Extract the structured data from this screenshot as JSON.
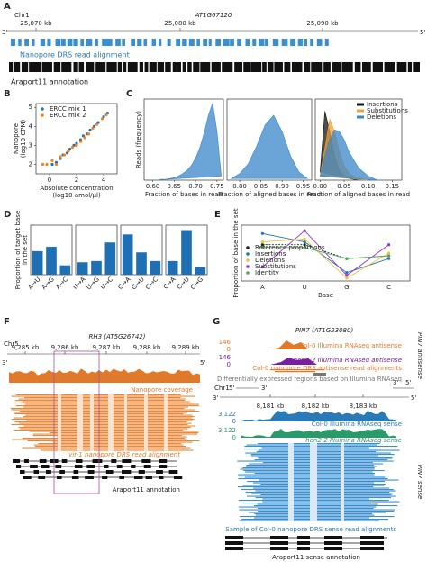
{
  "panels": {
    "A": {
      "label": "A",
      "chrom": "Chr1",
      "gene": "AT1G67120",
      "ticks": [
        "25,070 kb",
        "25,080 kb",
        "25,090 kb"
      ],
      "left_end": "3'",
      "right_end": "5'",
      "reads": "Nanopore DRS read alignment",
      "annotation": "Araport11 annotation"
    },
    "B": {
      "label": "B"
    },
    "C": {
      "label": "C"
    },
    "D": {
      "label": "D"
    },
    "E": {
      "label": "E"
    },
    "F": {
      "label": "F",
      "chrom": "Chr5",
      "gene": "RH3 (AT5G26742)",
      "ticks": [
        "9,285 kb",
        "9,286 kb",
        "9,287 kb",
        "9,288 kb",
        "9,289 kb"
      ],
      "left_end": "3'",
      "right_end": "5'",
      "coverage": "Nanopore coverage",
      "reads": "vir-1 nanopore DRS read alignment",
      "annotation": "Araport11 annotation"
    },
    "G": {
      "label": "G",
      "gene": "PIN7 (AT1G23080)",
      "antisense_scales": [
        "146",
        "0",
        "146",
        "0"
      ],
      "antisense_tracks": [
        "Col-0 Illumina RNAseq antisense",
        "hen2-2 Illumina RNAseq antisense",
        "Col-0 nanopore DRS antisense read alignments"
      ],
      "de_regions": "Differentially expressed regions based on Illumina RNAseq",
      "chrom": "Chr1",
      "left_strand": [
        "5'",
        "3'"
      ],
      "right_strand": [
        "3'",
        "5'"
      ],
      "left_end": "3'",
      "right_end": "5'",
      "ticks": [
        "8,181 kb",
        "8,182 kb",
        "8,183 kb"
      ],
      "sense_scales": [
        "3,122",
        "0",
        "3,122",
        "0"
      ],
      "sense_tracks": [
        "Col-0 Illumina RNAseq sense",
        "hen2-2 Illumina RNAseq sense"
      ],
      "sense_reads": "Sample of Col-0 nanopore DRS sense read alignments",
      "annotation": "Araport11 sense annotation",
      "side_labels": [
        "PIN7 antisense",
        "PIN7 sense"
      ]
    }
  },
  "chart_data": [
    {
      "type": "scatter",
      "xlabel": [
        "Absolute concentration",
        "(log10 amol/µl)"
      ],
      "ylabel": [
        "Nanopore",
        "(log10 CPM)"
      ],
      "legend": "upper left",
      "xlim": [
        -1,
        5
      ],
      "ylim": [
        1.5,
        5.2
      ],
      "xticks": [
        0,
        2,
        4
      ],
      "yticks": [
        2,
        3,
        4,
        5
      ],
      "series": [
        {
          "name": "ERCC mix 1",
          "color": "#1f77b4",
          "x": [
            0.2,
            0.5,
            0.8,
            1.0,
            1.3,
            1.5,
            1.8,
            2.0,
            2.3,
            2.5,
            2.8,
            3.0,
            3.3,
            3.6,
            4.0,
            4.3
          ],
          "values": [
            2.0,
            2.1,
            2.3,
            2.5,
            2.6,
            2.8,
            3.0,
            3.1,
            3.3,
            3.5,
            3.6,
            3.8,
            4.0,
            4.2,
            4.5,
            4.7
          ]
        },
        {
          "name": "ERCC mix 2",
          "color": "#ff7f0e",
          "x": [
            -0.5,
            -0.2,
            0.2,
            0.5,
            0.8,
            1.1,
            1.4,
            1.7,
            2.0,
            2.3,
            2.6,
            2.9,
            3.2,
            3.5,
            3.9,
            4.2
          ],
          "values": [
            2.0,
            2.0,
            2.2,
            2.0,
            2.4,
            2.5,
            2.7,
            2.9,
            3.0,
            3.2,
            3.4,
            3.6,
            3.9,
            4.1,
            4.4,
            4.6
          ]
        }
      ]
    },
    {
      "type": "area",
      "xlabel": [
        "Fraction of bases in read"
      ],
      "ylabel": [
        "Reads (frequency)"
      ],
      "xlim": [
        0.58,
        0.765
      ],
      "ylim": [
        0,
        1
      ],
      "xticks": [
        {
          "value": 0.6,
          "label": "0.60"
        },
        {
          "value": 0.65,
          "label": "0.65"
        },
        {
          "value": 0.7,
          "label": "0.70"
        },
        {
          "value": 0.75,
          "label": "0.75"
        }
      ],
      "series": [
        {
          "color": "#3a86c8",
          "x": [
            0.6,
            0.61,
            0.62,
            0.63,
            0.64,
            0.65,
            0.66,
            0.67,
            0.68,
            0.69,
            0.7,
            0.71,
            0.72,
            0.73,
            0.74,
            0.75,
            0.76
          ],
          "values": [
            0,
            0,
            0.01,
            0.01,
            0.02,
            0.03,
            0.05,
            0.08,
            0.12,
            0.18,
            0.27,
            0.4,
            0.58,
            0.8,
            0.95,
            0.6,
            0.05
          ]
        }
      ]
    },
    {
      "type": "area",
      "xlabel": [
        "Fraction of aligned bases in read"
      ],
      "xlim": [
        0.77,
        0.97
      ],
      "ylim": [
        0,
        1
      ],
      "xticks": [
        {
          "value": 0.8,
          "label": "0.80"
        },
        {
          "value": 0.85,
          "label": "0.85"
        },
        {
          "value": 0.9,
          "label": "0.90"
        },
        {
          "value": 0.95,
          "label": "0.95"
        }
      ],
      "series": [
        {
          "color": "#3a86c8",
          "x": [
            0.78,
            0.8,
            0.82,
            0.84,
            0.86,
            0.88,
            0.9,
            0.92,
            0.94,
            0.96
          ],
          "values": [
            0.02,
            0.08,
            0.2,
            0.42,
            0.68,
            0.8,
            0.6,
            0.3,
            0.1,
            0.02
          ]
        }
      ]
    },
    {
      "type": "area",
      "xlabel": [
        "Fraction of aligned bases in read"
      ],
      "legend": "upper right",
      "xlim": [
        -0.01,
        0.17
      ],
      "ylim": [
        0,
        1
      ],
      "xticks": [
        {
          "value": 0,
          "label": "0.00"
        },
        {
          "value": 0.05,
          "label": "0.05"
        },
        {
          "value": 0.1,
          "label": "0.10"
        },
        {
          "value": 0.15,
          "label": "0.15"
        }
      ],
      "series": [
        {
          "name": "Insertions",
          "color": "#111111",
          "x": [
            0,
            0.01,
            0.02,
            0.03,
            0.04,
            0.05,
            0.06,
            0.08
          ],
          "values": [
            0.1,
            0.85,
            0.6,
            0.3,
            0.12,
            0.05,
            0.02,
            0
          ]
        },
        {
          "name": "Substitutions",
          "color": "#f0a030",
          "x": [
            0,
            0.01,
            0.02,
            0.03,
            0.04,
            0.05,
            0.06,
            0.08,
            0.1
          ],
          "values": [
            0.05,
            0.4,
            0.75,
            0.6,
            0.35,
            0.18,
            0.08,
            0.02,
            0
          ]
        },
        {
          "name": "Deletions",
          "color": "#3a86c8",
          "x": [
            0,
            0.01,
            0.02,
            0.03,
            0.04,
            0.05,
            0.06,
            0.08,
            0.1,
            0.12
          ],
          "values": [
            0.05,
            0.3,
            0.5,
            0.62,
            0.6,
            0.5,
            0.35,
            0.15,
            0.05,
            0
          ]
        }
      ]
    },
    {
      "type": "bar",
      "ylabel": [
        "Proportion of target base",
        "in the set"
      ],
      "color": "#1f6fb4",
      "ylim": [
        0,
        0.8
      ],
      "categories": [
        "A→U",
        "A→G",
        "A→C"
      ],
      "values": [
        0.38,
        0.45,
        0.15
      ]
    },
    {
      "type": "bar",
      "color": "#1f6fb4",
      "ylim": [
        0,
        0.8
      ],
      "categories": [
        "U→A",
        "U→G",
        "U→C"
      ],
      "values": [
        0.2,
        0.22,
        0.52
      ]
    },
    {
      "type": "bar",
      "color": "#1f6fb4",
      "ylim": [
        0,
        0.8
      ],
      "categories": [
        "G→A",
        "G→U",
        "G→C"
      ],
      "values": [
        0.65,
        0.36,
        0.22
      ]
    },
    {
      "type": "bar",
      "color": "#1f6fb4",
      "ylim": [
        0,
        0.8
      ],
      "categories": [
        "C→A",
        "C→U",
        "C→G"
      ],
      "values": [
        0.22,
        0.72,
        0.12
      ]
    },
    {
      "type": "line",
      "xlabel": [
        "Base"
      ],
      "ylabel": [
        "Proportion of base in the set"
      ],
      "legend": "lower left",
      "ylim": [
        0.14,
        0.34
      ],
      "categories": [
        "A",
        "U",
        "G",
        "C"
      ],
      "series": [
        {
          "name": "Reference proportions",
          "color": "#222222",
          "dashed": true,
          "values": [
            0.27,
            0.27,
            0.22,
            0.23
          ]
        },
        {
          "name": "Insertions",
          "color": "#1f77b4",
          "values": [
            0.31,
            0.28,
            0.17,
            0.22
          ]
        },
        {
          "name": "Deletions",
          "color": "#f0c040",
          "values": [
            0.28,
            0.29,
            0.15,
            0.24
          ]
        },
        {
          "name": "Substitutions",
          "color": "#9b30d0",
          "values": [
            0.19,
            0.32,
            0.16,
            0.27
          ]
        },
        {
          "name": "Identity",
          "color": "#4caf50",
          "values": [
            0.26,
            0.26,
            0.22,
            0.23
          ]
        }
      ]
    }
  ]
}
